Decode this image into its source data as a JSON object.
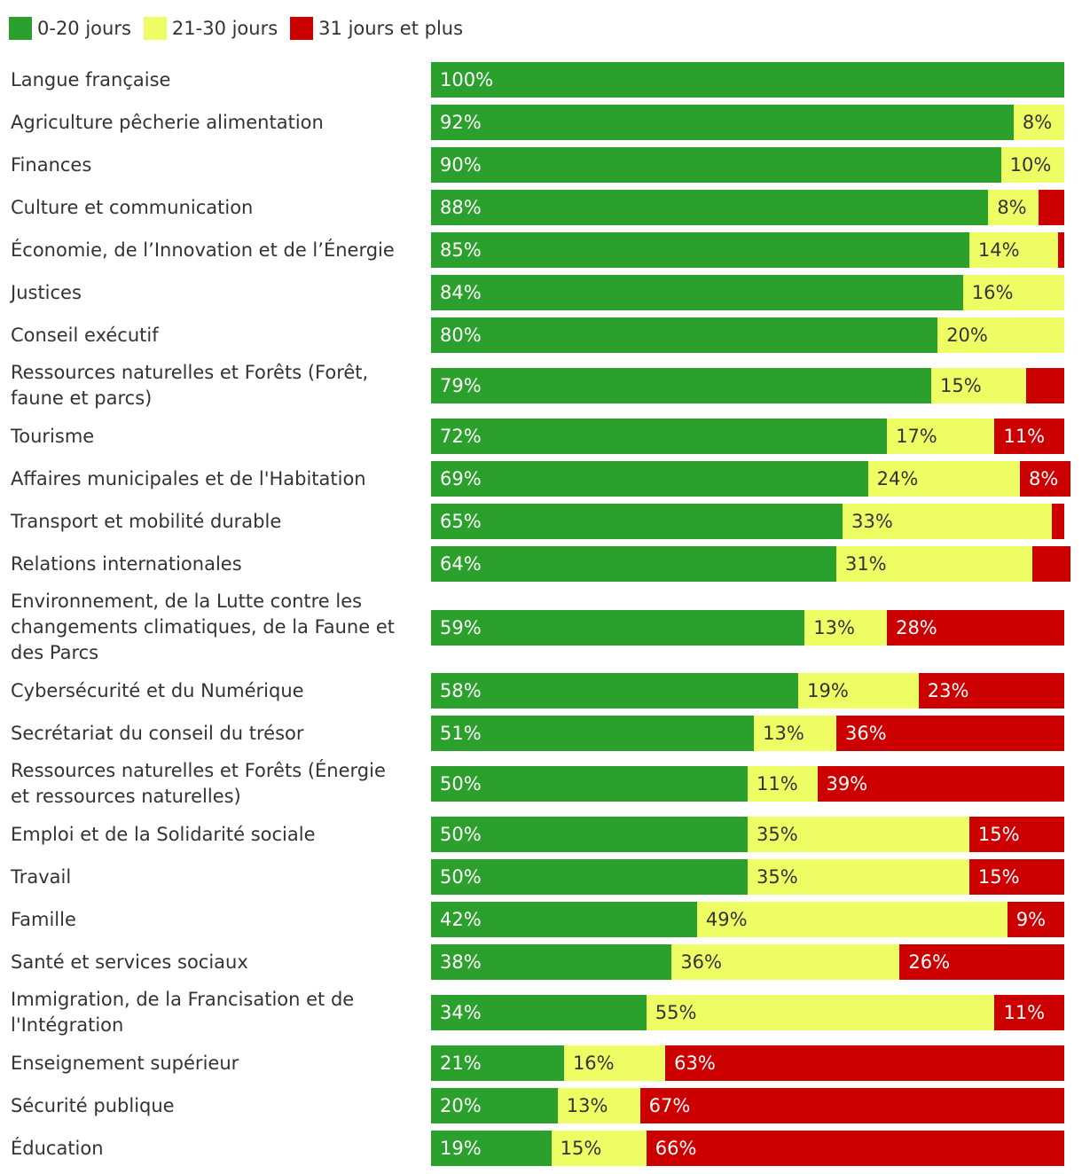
{
  "chart_data": {
    "type": "bar",
    "orientation": "horizontal",
    "stacked": true,
    "legend_position": "top-left",
    "grid": false,
    "xlim": [
      0,
      100
    ],
    "series": [
      {
        "name": "0-20 jours",
        "color": "#2ca02c",
        "label_color": "#ffffff",
        "values": [
          100,
          92,
          90,
          88,
          85,
          84,
          80,
          79,
          72,
          69,
          65,
          64,
          59,
          58,
          51,
          50,
          50,
          50,
          42,
          38,
          34,
          21,
          20,
          19
        ],
        "labels": [
          "100%",
          "92%",
          "90%",
          "88%",
          "85%",
          "84%",
          "80%",
          "79%",
          "72%",
          "69%",
          "65%",
          "64%",
          "59%",
          "58%",
          "51%",
          "50%",
          "50%",
          "50%",
          "42%",
          "38%",
          "34%",
          "21%",
          "20%",
          "19%"
        ]
      },
      {
        "name": "21-30 jours",
        "color": "#eefd63",
        "label_color": "#333333",
        "values": [
          0,
          8,
          10,
          8,
          14,
          16,
          20,
          15,
          17,
          24,
          33,
          31,
          13,
          19,
          13,
          11,
          35,
          35,
          49,
          36,
          55,
          16,
          13,
          15
        ],
        "labels": [
          "",
          "8%",
          "10%",
          "8%",
          "14%",
          "16%",
          "20%",
          "15%",
          "17%",
          "24%",
          "33%",
          "31%",
          "13%",
          "19%",
          "13%",
          "11%",
          "35%",
          "35%",
          "49%",
          "36%",
          "55%",
          "16%",
          "13%",
          "15%"
        ]
      },
      {
        "name": "31 jours et plus",
        "color": "#cc0000",
        "label_color": "#ffffff",
        "values": [
          0,
          0,
          0,
          4,
          1,
          0,
          0,
          6,
          11,
          8,
          2,
          6,
          28,
          23,
          36,
          39,
          15,
          15,
          9,
          26,
          11,
          63,
          67,
          66
        ],
        "labels": [
          "",
          "",
          "",
          "",
          "",
          "",
          "",
          "",
          "11%",
          "8%",
          "",
          "",
          "28%",
          "23%",
          "36%",
          "39%",
          "15%",
          "15%",
          "9%",
          "26%",
          "11%",
          "63%",
          "67%",
          "66%"
        ]
      }
    ],
    "categories": [
      [
        "Langue française"
      ],
      [
        "Agriculture pêcherie alimentation"
      ],
      [
        "Finances"
      ],
      [
        "Culture et communication"
      ],
      [
        "Économie, de l’Innovation et de l’Énergie"
      ],
      [
        "Justices"
      ],
      [
        "Conseil exécutif"
      ],
      [
        "Ressources naturelles et Forêts (Forêt,",
        "faune et parcs)"
      ],
      [
        "Tourisme"
      ],
      [
        "Affaires municipales et de l'Habitation"
      ],
      [
        "Transport et mobilité durable"
      ],
      [
        "Relations internationales"
      ],
      [
        "Environnement, de la Lutte contre les",
        "changements climatiques, de la Faune et",
        "des Parcs"
      ],
      [
        "Cybersécurité et du Numérique"
      ],
      [
        "Secrétariat du conseil du trésor"
      ],
      [
        "Ressources naturelles et Forêts (Énergie",
        "et ressources naturelles)"
      ],
      [
        "Emploi et de la Solidarité sociale"
      ],
      [
        "Travail"
      ],
      [
        "Famille"
      ],
      [
        "Santé et services sociaux"
      ],
      [
        "Immigration, de la Francisation et de",
        "l'Intégration"
      ],
      [
        "Enseignement supérieur"
      ],
      [
        "Sécurité publique"
      ],
      [
        "Éducation"
      ]
    ]
  }
}
